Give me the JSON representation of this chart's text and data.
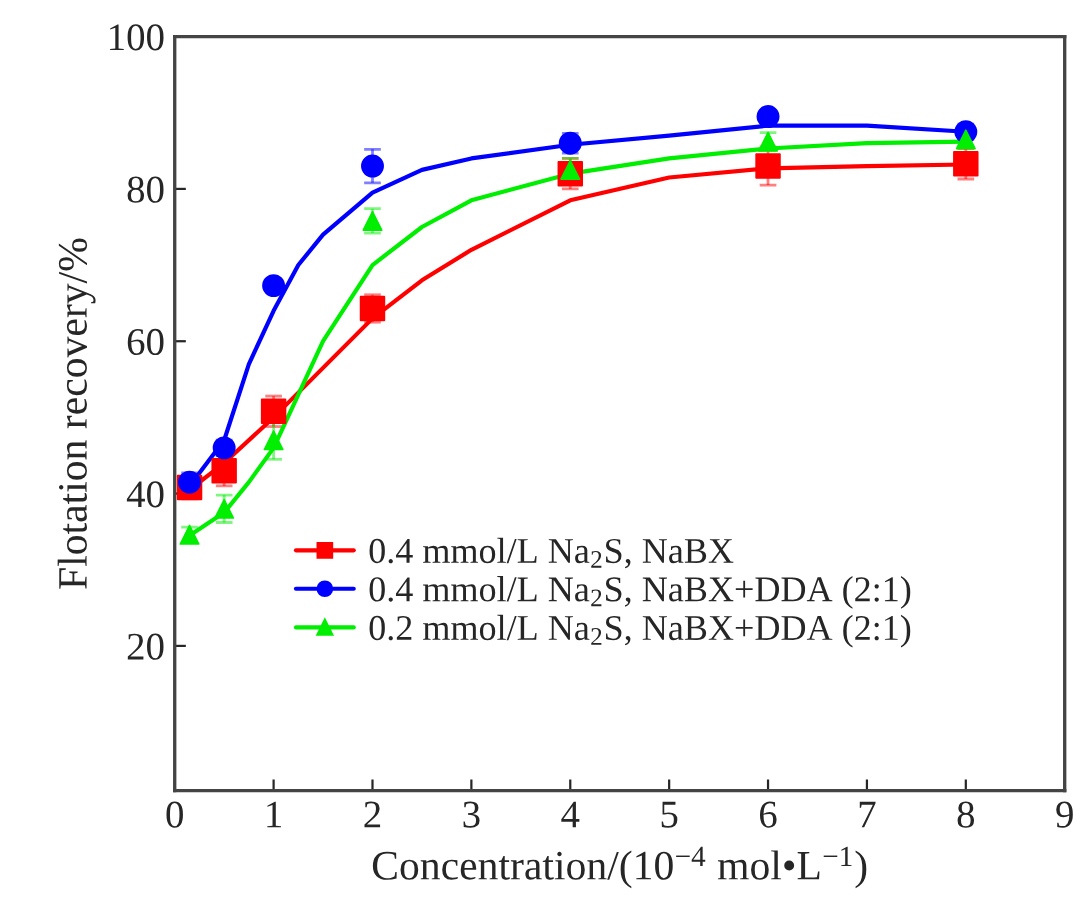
{
  "chart_data": {
    "type": "scatter",
    "xlabel": "Concentration/(10$^{−4}$ mol•L$^{−1}$)",
    "ylabel": "Flotation recovery/%",
    "xlim": [
      0,
      9
    ],
    "xticks": [
      0,
      1,
      2,
      3,
      4,
      5,
      6,
      7,
      8,
      9
    ],
    "ylim": [
      1,
      100
    ],
    "yticks": [
      20,
      40,
      60,
      80,
      100
    ],
    "grid": false,
    "legend": "bottom left",
    "series": [
      {
        "name": "0.4 mmol/L Na$_{2}$S, NaBX",
        "marker": "square",
        "color": "#ff0000",
        "x": [
          0.15,
          0.5,
          1,
          2,
          4,
          6,
          8
        ],
        "values": [
          40.8,
          43,
          50.8,
          64.3,
          82,
          83,
          83.3
        ],
        "errors": [
          1.5,
          2,
          2,
          1.8,
          2,
          2.5,
          2
        ]
      },
      {
        "name": "0.4 mmol/L Na$_{2}$S, NaBX+DDA (2:1)",
        "marker": "circle",
        "color": "#0000ff",
        "x": [
          0.15,
          0.5,
          1,
          2,
          4,
          6,
          8
        ],
        "values": [
          41.5,
          46,
          67.3,
          83,
          86,
          89.5,
          87.5
        ],
        "errors": [
          1.2,
          1,
          0.5,
          2.2,
          1.3,
          0.5,
          1
        ]
      },
      {
        "name": "0.2 mmol/L Na$_{2}$S, NaBX+DDA (2:1)",
        "marker": "triangle",
        "color": "#00ee00",
        "x": [
          0.15,
          0.5,
          1,
          2,
          4,
          6,
          8
        ],
        "values": [
          34.6,
          38,
          47,
          75.8,
          82.5,
          86.2,
          86.5
        ],
        "errors": [
          1,
          1.8,
          2.5,
          1.6,
          1.5,
          1.2,
          1
        ]
      },
      {
        "type": "line",
        "marker": "none",
        "color": "#ff0000",
        "x": [
          0.15,
          0.5,
          1,
          1.5,
          2,
          2.5,
          3,
          4,
          5,
          6,
          7,
          8
        ],
        "values": [
          40.5,
          44,
          50,
          56.5,
          63,
          68,
          72,
          78.5,
          81.5,
          82.7,
          83,
          83.2
        ]
      },
      {
        "type": "line",
        "marker": "none",
        "color": "#0000ff",
        "x": [
          0.15,
          0.5,
          0.75,
          1,
          1.25,
          1.5,
          2,
          2.5,
          3,
          4,
          5,
          6,
          7,
          8
        ],
        "values": [
          41,
          47,
          57,
          64,
          70,
          74,
          79.5,
          82.5,
          84,
          85.8,
          87,
          88.3,
          88.3,
          87.5
        ]
      },
      {
        "type": "line",
        "marker": "none",
        "color": "#00ee00",
        "x": [
          0.15,
          0.5,
          0.75,
          1,
          1.25,
          1.5,
          2,
          2.5,
          3,
          4,
          5,
          6,
          7,
          8
        ],
        "values": [
          34.5,
          37.5,
          41.5,
          46,
          53,
          60,
          70,
          75,
          78.5,
          82,
          84,
          85.3,
          86,
          86.2
        ]
      }
    ]
  }
}
